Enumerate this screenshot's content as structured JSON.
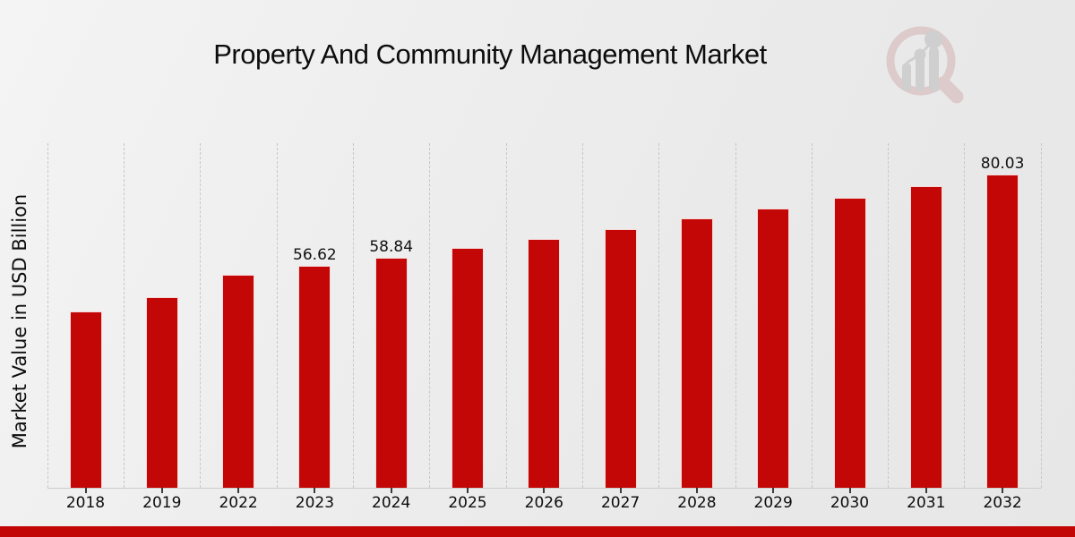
{
  "title": "Property And Community Management Market",
  "y_axis_label": "Market Value in USD Billion",
  "colors": {
    "bar": "#c30706",
    "footer_strip": "#c10605",
    "gridline": "#c7c7c7",
    "watermark_ring": "#c58a8a",
    "watermark_bars": "#9a9a9a"
  },
  "footer": {},
  "chart_data": {
    "type": "bar",
    "title": "Property And Community Management Market",
    "xlabel": "",
    "ylabel": "Market Value in USD Billion",
    "categories": [
      "2018",
      "2019",
      "2022",
      "2023",
      "2024",
      "2025",
      "2026",
      "2027",
      "2028",
      "2029",
      "2030",
      "2031",
      "2032"
    ],
    "values": [
      45.1,
      48.7,
      54.5,
      56.62,
      58.84,
      61.2,
      63.5,
      66.0,
      68.7,
      71.3,
      74.1,
      77.0,
      80.03
    ],
    "data_labels": [
      "",
      "",
      "",
      "56.62",
      "58.84",
      "",
      "",
      "",
      "",
      "",
      "",
      "",
      "80.03"
    ],
    "ylim": [
      0,
      88
    ],
    "grid": "vertical-dashed",
    "legend": "none",
    "bar_color": "#c30706"
  }
}
